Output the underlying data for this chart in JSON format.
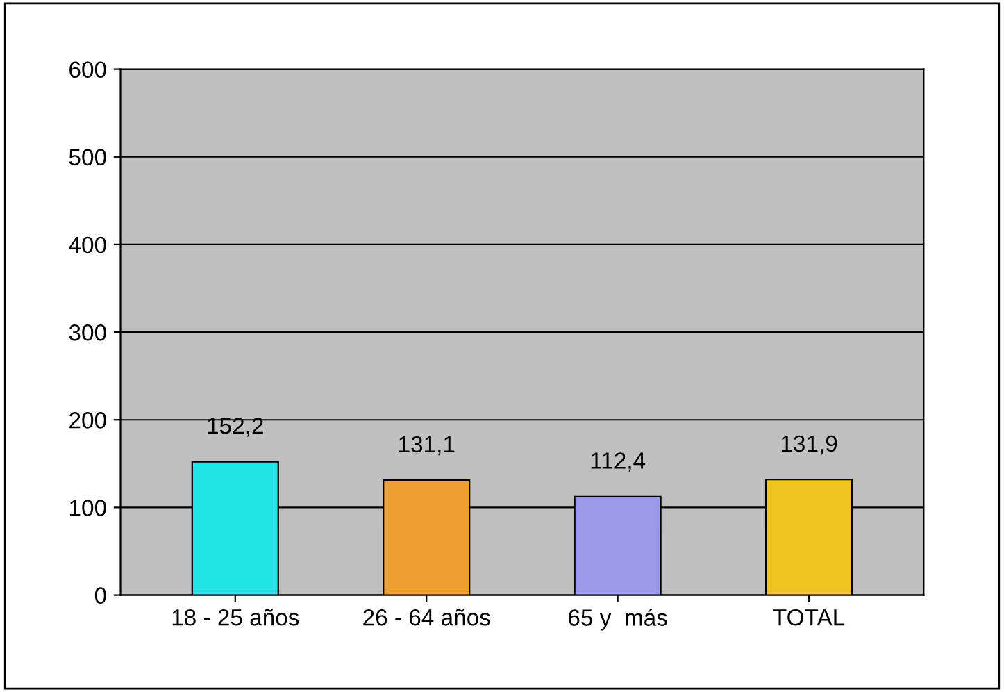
{
  "chart_data": {
    "type": "bar",
    "categories": [
      "18 - 25 años",
      "26 - 64 años",
      "65 y  más",
      "TOTAL"
    ],
    "values": [
      152.2,
      131.1,
      112.4,
      131.9
    ],
    "colors": [
      "#22e5e5",
      "#f0a030",
      "#9a9ae8",
      "#f0c420"
    ],
    "value_labels": [
      "152,2",
      "131,1",
      "112,4",
      "131,9"
    ],
    "ylim": [
      0,
      600
    ],
    "yticks": [
      0,
      100,
      200,
      300,
      400,
      500,
      600
    ],
    "grid": "y"
  }
}
